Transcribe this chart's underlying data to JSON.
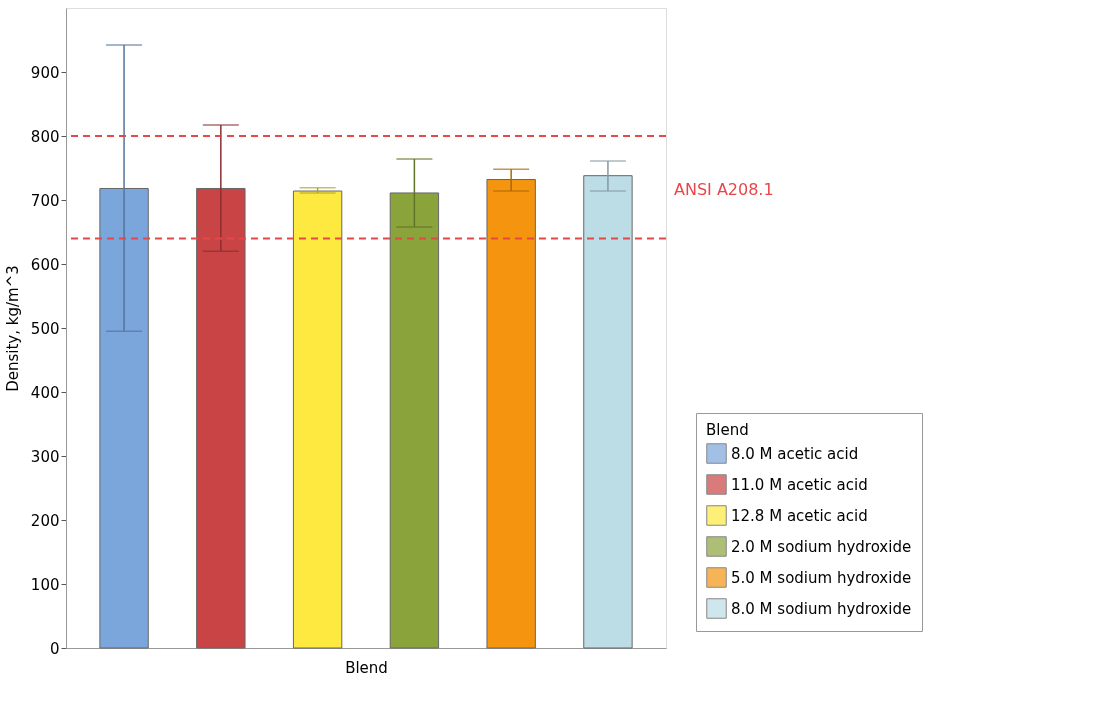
{
  "chart_data": {
    "type": "bar",
    "xlabel": "Blend",
    "ylabel": "Density, kg/m^3",
    "legend_title": "Blend",
    "categories": [
      null,
      null,
      null,
      null,
      null,
      null
    ],
    "series": [
      {
        "name": "8.0 M acetic acid",
        "color": "#7ba6db",
        "values": [
          718,
          null,
          null,
          null,
          null,
          null
        ],
        "errors": [
          [
            495,
            942
          ],
          null,
          null,
          null,
          null,
          null
        ]
      },
      {
        "name": "11.0 M acetic acid",
        "color": "#c94444",
        "values": [
          null,
          718,
          null,
          null,
          null,
          null
        ],
        "errors": [
          null,
          [
            620,
            817
          ],
          null,
          null,
          null,
          null
        ]
      },
      {
        "name": "12.8 M acetic acid",
        "color": "#fde93f",
        "values": [
          null,
          null,
          714,
          null,
          null,
          null
        ],
        "errors": [
          null,
          null,
          [
            711,
            719
          ],
          null,
          null,
          null
        ]
      },
      {
        "name": "2.0 M sodium hydroxide",
        "color": "#8ba33b",
        "values": [
          null,
          null,
          null,
          711,
          null,
          null
        ],
        "errors": [
          null,
          null,
          null,
          [
            658,
            764
          ],
          null,
          null
        ]
      },
      {
        "name": "5.0 M sodium hydroxide",
        "color": "#f5950f",
        "values": [
          null,
          null,
          null,
          null,
          732,
          null
        ],
        "errors": [
          null,
          null,
          null,
          null,
          [
            714,
            748
          ],
          null
        ]
      },
      {
        "name": "8.0 M sodium hydroxide",
        "color": "#bcdce6",
        "values": [
          null,
          null,
          null,
          null,
          null,
          738
        ],
        "errors": [
          null,
          null,
          null,
          null,
          null,
          [
            714,
            761
          ]
        ]
      }
    ],
    "ylim": [
      0,
      1000
    ],
    "yticks": [
      0,
      100,
      200,
      300,
      400,
      500,
      600,
      700,
      800,
      900
    ],
    "ref_lines": [
      {
        "axis": "y",
        "value": 800,
        "label": null,
        "color": "#e8474a",
        "line_style": "dashed"
      },
      {
        "axis": "y",
        "value": 640,
        "label": "ANSI A208.1",
        "color": "#e8474a",
        "line_style": "dashed"
      }
    ],
    "grid": false,
    "legend": "bottom right",
    "tick_labels": "y"
  }
}
